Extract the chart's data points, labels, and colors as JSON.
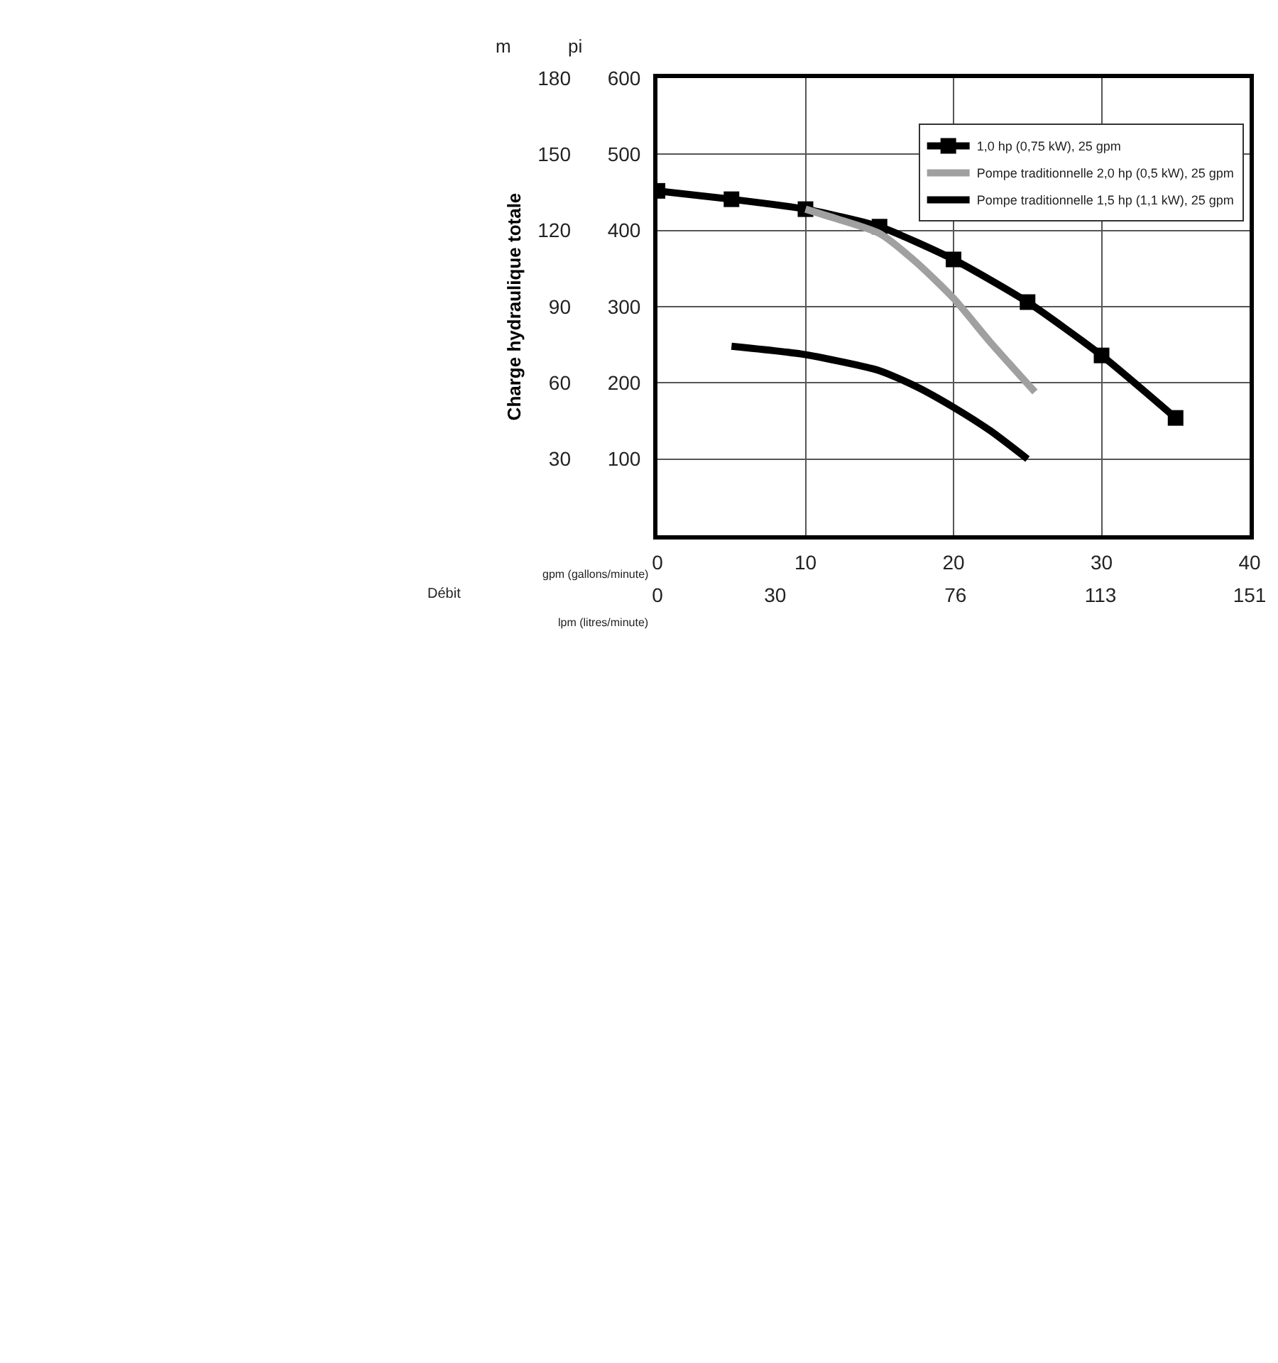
{
  "chart_data": {
    "type": "line",
    "ylabel": "Charge hydraulique totale",
    "xlabel": "gpm (gallons/minute)",
    "x2label": "lpm (litres/minute)",
    "annotations": [
      "m",
      "pi",
      "Débit"
    ],
    "xlim": [
      0,
      40
    ],
    "xticks": [
      0,
      10,
      20,
      30,
      40
    ],
    "x2lim": [
      0,
      151
    ],
    "x2ticks": [
      0,
      30,
      76,
      113,
      151
    ],
    "ylim": [
      0,
      180
    ],
    "yticks": [
      30,
      60,
      90,
      120,
      150,
      180
    ],
    "y2lim": [
      0,
      600
    ],
    "y2ticks": [
      100,
      200,
      300,
      400,
      500,
      600
    ],
    "grid": true,
    "legend": "top right",
    "series": [
      {
        "name": "1,0 hp (0,75 kW), 25 gpm",
        "color": "#000000",
        "marker": "square",
        "axis": "y2",
        "x": [
          0,
          5,
          10,
          15,
          20,
          25,
          30,
          35
        ],
        "values": [
          452,
          441,
          428,
          405,
          362,
          306,
          236,
          154
        ]
      },
      {
        "name": "Pompe traditionnelle 2,0 hp (0,5 kW), 25 gpm",
        "color": "#a0a0a0",
        "marker": "none",
        "axis": "y2",
        "x": [
          10,
          12,
          15,
          17.5,
          20,
          22.5,
          25.5
        ],
        "values": [
          428,
          416,
          396,
          358,
          311,
          253,
          188
        ]
      },
      {
        "name": "Pompe traditionnelle 1,5 hp (1,1 kW), 25 gpm",
        "color": "#000000",
        "marker": "none",
        "axis": "y2",
        "x": [
          5,
          10,
          15,
          17.5,
          20,
          22.5,
          25
        ],
        "values": [
          248,
          237,
          216,
          195,
          168,
          137,
          100
        ]
      }
    ]
  }
}
